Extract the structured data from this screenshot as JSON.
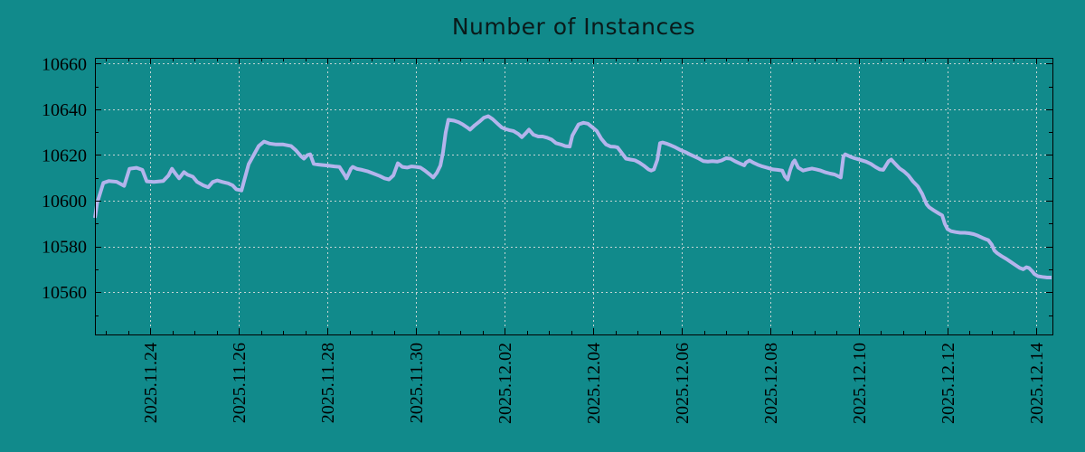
{
  "colors": {
    "background": "#118a8b",
    "line": "#b4b4ec",
    "grid": "#c6d4d4",
    "axis": "#000000",
    "text": "#000000"
  },
  "chart_data": {
    "type": "line",
    "title": "Number of Instances",
    "legend": false,
    "grid": "dashed-on-major-ticks",
    "x_axis": {
      "range": [
        -1.25,
        20.37
      ],
      "unit": "days-since-first-major-tick",
      "minor_tick_step": 0.5,
      "major_ticks": [
        {
          "d": 0,
          "label": "2025.11.24"
        },
        {
          "d": 2,
          "label": "2025.11.26"
        },
        {
          "d": 4,
          "label": "2025.11.28"
        },
        {
          "d": 6,
          "label": "2025.11.30"
        },
        {
          "d": 8,
          "label": "2025.12.02"
        },
        {
          "d": 10,
          "label": "2025.12.04"
        },
        {
          "d": 12,
          "label": "2025.12.06"
        },
        {
          "d": 14,
          "label": "2025.12.08"
        },
        {
          "d": 16,
          "label": "2025.12.10"
        },
        {
          "d": 18,
          "label": "2025.12.12"
        },
        {
          "d": 20,
          "label": "2025.12.14"
        }
      ]
    },
    "y_axis": {
      "range": [
        10541.5,
        10662.5
      ],
      "minor_tick_step": 10,
      "major_ticks": [
        {
          "v": 10560,
          "label": "10560"
        },
        {
          "v": 10580,
          "label": "10580"
        },
        {
          "v": 10600,
          "label": "10600"
        },
        {
          "v": 10620,
          "label": "10620"
        },
        {
          "v": 10640,
          "label": "10640"
        },
        {
          "v": 10660,
          "label": "10660"
        }
      ]
    },
    "points": [
      [
        -1.25,
        10592.5
      ],
      [
        -1.2,
        10599
      ],
      [
        -1.06,
        10607.8
      ],
      [
        -0.94,
        10608.6
      ],
      [
        -0.76,
        10608.3
      ],
      [
        -0.59,
        10606.5
      ],
      [
        -0.47,
        10614
      ],
      [
        -0.31,
        10614.4
      ],
      [
        -0.18,
        10613.5
      ],
      [
        -0.08,
        10608.5
      ],
      [
        0.08,
        10608.2
      ],
      [
        0.29,
        10608.6
      ],
      [
        0.41,
        10611
      ],
      [
        0.49,
        10614
      ],
      [
        0.57,
        10611.8
      ],
      [
        0.65,
        10609.8
      ],
      [
        0.76,
        10612.5
      ],
      [
        0.84,
        10611.4
      ],
      [
        0.96,
        10610.5
      ],
      [
        1.06,
        10608.2
      ],
      [
        1.2,
        10606.7
      ],
      [
        1.31,
        10605.9
      ],
      [
        1.41,
        10608.2
      ],
      [
        1.51,
        10608.9
      ],
      [
        1.63,
        10608.2
      ],
      [
        1.76,
        10607.6
      ],
      [
        1.86,
        10606.7
      ],
      [
        1.94,
        10605
      ],
      [
        2.06,
        10604.5
      ],
      [
        2.22,
        10616
      ],
      [
        2.45,
        10624
      ],
      [
        2.57,
        10625.9
      ],
      [
        2.69,
        10625
      ],
      [
        2.84,
        10624.6
      ],
      [
        3,
        10624.6
      ],
      [
        3.18,
        10623.9
      ],
      [
        3.29,
        10622
      ],
      [
        3.41,
        10619.3
      ],
      [
        3.47,
        10618.4
      ],
      [
        3.55,
        10620
      ],
      [
        3.61,
        10620.3
      ],
      [
        3.69,
        10616.1
      ],
      [
        3.8,
        10615.8
      ],
      [
        4,
        10615.4
      ],
      [
        4.16,
        10615
      ],
      [
        4.27,
        10614.8
      ],
      [
        4.41,
        10610.6
      ],
      [
        4.43,
        10609.8
      ],
      [
        4.53,
        10614
      ],
      [
        4.57,
        10614.8
      ],
      [
        4.67,
        10613.9
      ],
      [
        4.78,
        10613.5
      ],
      [
        4.92,
        10612.8
      ],
      [
        5.04,
        10611.9
      ],
      [
        5.18,
        10610.8
      ],
      [
        5.29,
        10609.8
      ],
      [
        5.39,
        10609.3
      ],
      [
        5.49,
        10611.1
      ],
      [
        5.59,
        10616.4
      ],
      [
        5.69,
        10614.8
      ],
      [
        5.8,
        10614.5
      ],
      [
        5.9,
        10615
      ],
      [
        6,
        10614.8
      ],
      [
        6.1,
        10614.5
      ],
      [
        6.2,
        10613.2
      ],
      [
        6.31,
        10611.5
      ],
      [
        6.39,
        10610.2
      ],
      [
        6.47,
        10612.2
      ],
      [
        6.55,
        10615.4
      ],
      [
        6.61,
        10621.3
      ],
      [
        6.67,
        10629.8
      ],
      [
        6.73,
        10635.4
      ],
      [
        6.86,
        10635
      ],
      [
        6.96,
        10634.4
      ],
      [
        7.06,
        10633.3
      ],
      [
        7.16,
        10632
      ],
      [
        7.22,
        10631.1
      ],
      [
        7.33,
        10633.1
      ],
      [
        7.43,
        10634.6
      ],
      [
        7.53,
        10636.3
      ],
      [
        7.63,
        10637
      ],
      [
        7.73,
        10635.7
      ],
      [
        7.84,
        10633.7
      ],
      [
        7.94,
        10632
      ],
      [
        8,
        10631.5
      ],
      [
        8.1,
        10630.9
      ],
      [
        8.2,
        10630.5
      ],
      [
        8.31,
        10629.2
      ],
      [
        8.39,
        10627.8
      ],
      [
        8.49,
        10629.8
      ],
      [
        8.55,
        10631.1
      ],
      [
        8.65,
        10628.9
      ],
      [
        8.76,
        10628.1
      ],
      [
        8.86,
        10628.1
      ],
      [
        8.96,
        10627.6
      ],
      [
        9.06,
        10626.8
      ],
      [
        9.16,
        10625.2
      ],
      [
        9.27,
        10624.6
      ],
      [
        9.37,
        10623.9
      ],
      [
        9.47,
        10623.7
      ],
      [
        9.53,
        10628.5
      ],
      [
        9.67,
        10633.4
      ],
      [
        9.78,
        10634.1
      ],
      [
        9.88,
        10633.7
      ],
      [
        10,
        10631.8
      ],
      [
        10.08,
        10630.5
      ],
      [
        10.18,
        10627.2
      ],
      [
        10.29,
        10624.6
      ],
      [
        10.39,
        10623.7
      ],
      [
        10.49,
        10623.6
      ],
      [
        10.55,
        10623.3
      ],
      [
        10.63,
        10621.3
      ],
      [
        10.74,
        10618.4
      ],
      [
        10.84,
        10618
      ],
      [
        10.94,
        10617.7
      ],
      [
        11.04,
        10616.7
      ],
      [
        11.14,
        10615.4
      ],
      [
        11.25,
        10613.7
      ],
      [
        11.31,
        10613.2
      ],
      [
        11.37,
        10613.7
      ],
      [
        11.45,
        10618
      ],
      [
        11.51,
        10625.2
      ],
      [
        11.57,
        10625.5
      ],
      [
        11.65,
        10625
      ],
      [
        11.76,
        10624.2
      ],
      [
        11.86,
        10623.3
      ],
      [
        11.98,
        10622.1
      ],
      [
        12.08,
        10621.3
      ],
      [
        12.18,
        10620.3
      ],
      [
        12.29,
        10619.3
      ],
      [
        12.39,
        10618.4
      ],
      [
        12.49,
        10617.3
      ],
      [
        12.59,
        10617.1
      ],
      [
        12.69,
        10617.3
      ],
      [
        12.8,
        10617.1
      ],
      [
        12.9,
        10617.6
      ],
      [
        13,
        10618.6
      ],
      [
        13.1,
        10618.4
      ],
      [
        13.2,
        10617.3
      ],
      [
        13.31,
        10616.3
      ],
      [
        13.41,
        10615.5
      ],
      [
        13.45,
        10616.7
      ],
      [
        13.53,
        10617.6
      ],
      [
        13.61,
        10616.7
      ],
      [
        13.71,
        10615.8
      ],
      [
        13.82,
        10615
      ],
      [
        13.92,
        10614.5
      ],
      [
        14.06,
        10613.7
      ],
      [
        14.16,
        10613.5
      ],
      [
        14.27,
        10613.2
      ],
      [
        14.33,
        10610.6
      ],
      [
        14.39,
        10609.3
      ],
      [
        14.45,
        10613.5
      ],
      [
        14.51,
        10616.7
      ],
      [
        14.55,
        10617.6
      ],
      [
        14.63,
        10614.5
      ],
      [
        14.74,
        10613.2
      ],
      [
        14.84,
        10613.7
      ],
      [
        14.94,
        10614.1
      ],
      [
        15.04,
        10613.7
      ],
      [
        15.14,
        10613.2
      ],
      [
        15.25,
        10612.4
      ],
      [
        15.35,
        10611.9
      ],
      [
        15.45,
        10611.5
      ],
      [
        15.55,
        10610.6
      ],
      [
        15.59,
        10610.2
      ],
      [
        15.65,
        10619.3
      ],
      [
        15.69,
        10620.3
      ],
      [
        15.8,
        10619.3
      ],
      [
        15.9,
        10618.6
      ],
      [
        15.96,
        10618.3
      ],
      [
        16.06,
        10617.7
      ],
      [
        16.16,
        10617.1
      ],
      [
        16.27,
        10616.1
      ],
      [
        16.37,
        10614.8
      ],
      [
        16.47,
        10613.7
      ],
      [
        16.55,
        10613.5
      ],
      [
        16.61,
        10615.4
      ],
      [
        16.67,
        10617.3
      ],
      [
        16.73,
        10618
      ],
      [
        16.82,
        10616.1
      ],
      [
        16.92,
        10614.1
      ],
      [
        17.02,
        10612.8
      ],
      [
        17.12,
        10611
      ],
      [
        17.22,
        10608.5
      ],
      [
        17.33,
        10606.3
      ],
      [
        17.43,
        10603
      ],
      [
        17.53,
        10598.4
      ],
      [
        17.59,
        10597.1
      ],
      [
        17.69,
        10595.8
      ],
      [
        17.8,
        10594.5
      ],
      [
        17.88,
        10593.6
      ],
      [
        17.94,
        10589.9
      ],
      [
        18,
        10587.6
      ],
      [
        18.08,
        10586.7
      ],
      [
        18.18,
        10586.3
      ],
      [
        18.29,
        10586
      ],
      [
        18.39,
        10586
      ],
      [
        18.49,
        10585.8
      ],
      [
        18.59,
        10585.4
      ],
      [
        18.69,
        10584.7
      ],
      [
        18.8,
        10583.7
      ],
      [
        18.86,
        10583.2
      ],
      [
        18.92,
        10582.8
      ],
      [
        19,
        10580.8
      ],
      [
        19.06,
        10578.2
      ],
      [
        19.12,
        10577.1
      ],
      [
        19.22,
        10575.8
      ],
      [
        19.33,
        10574.5
      ],
      [
        19.43,
        10573.2
      ],
      [
        19.53,
        10571.9
      ],
      [
        19.63,
        10570.6
      ],
      [
        19.71,
        10570
      ],
      [
        19.78,
        10570.9
      ],
      [
        19.84,
        10570.6
      ],
      [
        19.92,
        10569
      ],
      [
        19.96,
        10568
      ],
      [
        20.04,
        10567
      ],
      [
        20.14,
        10566.7
      ],
      [
        20.25,
        10566.4
      ],
      [
        20.35,
        10566.4
      ]
    ]
  }
}
